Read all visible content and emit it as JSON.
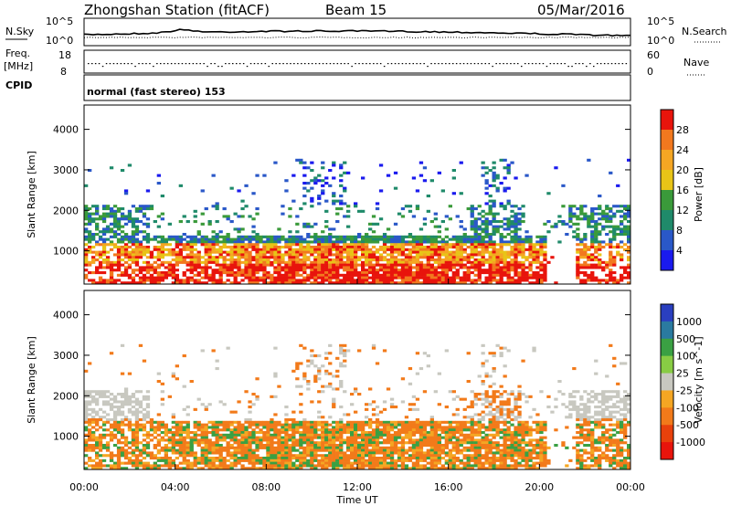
{
  "header": {
    "station": "Zhongshan Station (fitACF)",
    "beam": "Beam 15",
    "date": "05/Mar/2016"
  },
  "top_panels": {
    "nsky_label": "N.Sky",
    "nsky_ticks": [
      "10^5",
      "10^0"
    ],
    "nsearch_label": "N.Search",
    "nsearch_ticks": [
      "10^5",
      "10^0"
    ],
    "freq_label_1": "Freq.",
    "freq_label_2": "[MHz]",
    "freq_ticks": [
      "18",
      "8"
    ],
    "nave_label": "Nave",
    "nave_ticks": [
      "60",
      "0"
    ],
    "cpid_label": "CPID",
    "cpid_text": "normal (fast stereo) 153"
  },
  "chart_data": [
    {
      "type": "heatmap",
      "title": "",
      "ylabel": "Slant Range [km]",
      "xlabel": "",
      "ylim": [
        180,
        4600
      ],
      "y_ticks": [
        "1000",
        "2000",
        "3000",
        "4000"
      ],
      "colorbar_label": "Power [dB]",
      "colorbar_ticks": [
        "28",
        "24",
        "20",
        "16",
        "12",
        "8",
        "4"
      ],
      "colorbar_colors": [
        "#e8140c",
        "#f2781e",
        "#f5a623",
        "#e8c417",
        "#3a9a3a",
        "#1f8a6a",
        "#2a58c8",
        "#1a1aee"
      ]
    },
    {
      "type": "heatmap",
      "title": "",
      "ylabel": "Slant Range [km]",
      "xlabel": "Time UT",
      "ylim": [
        180,
        4600
      ],
      "y_ticks": [
        "1000",
        "2000",
        "3000",
        "4000"
      ],
      "x_ticks": [
        "00:00",
        "04:00",
        "08:00",
        "12:00",
        "16:00",
        "20:00",
        "00:00"
      ],
      "colorbar_label": "Velocity [m s^-1]",
      "colorbar_ticks": [
        "1000",
        "500",
        "100",
        "25",
        "-25",
        "-100",
        "-500",
        "-1000"
      ],
      "colorbar_colors": [
        "#2a3fbf",
        "#2a7aa0",
        "#3aa043",
        "#88cc44",
        "#c8c8c0",
        "#f5a623",
        "#f27a1a",
        "#e8410c",
        "#e8140c"
      ]
    }
  ]
}
